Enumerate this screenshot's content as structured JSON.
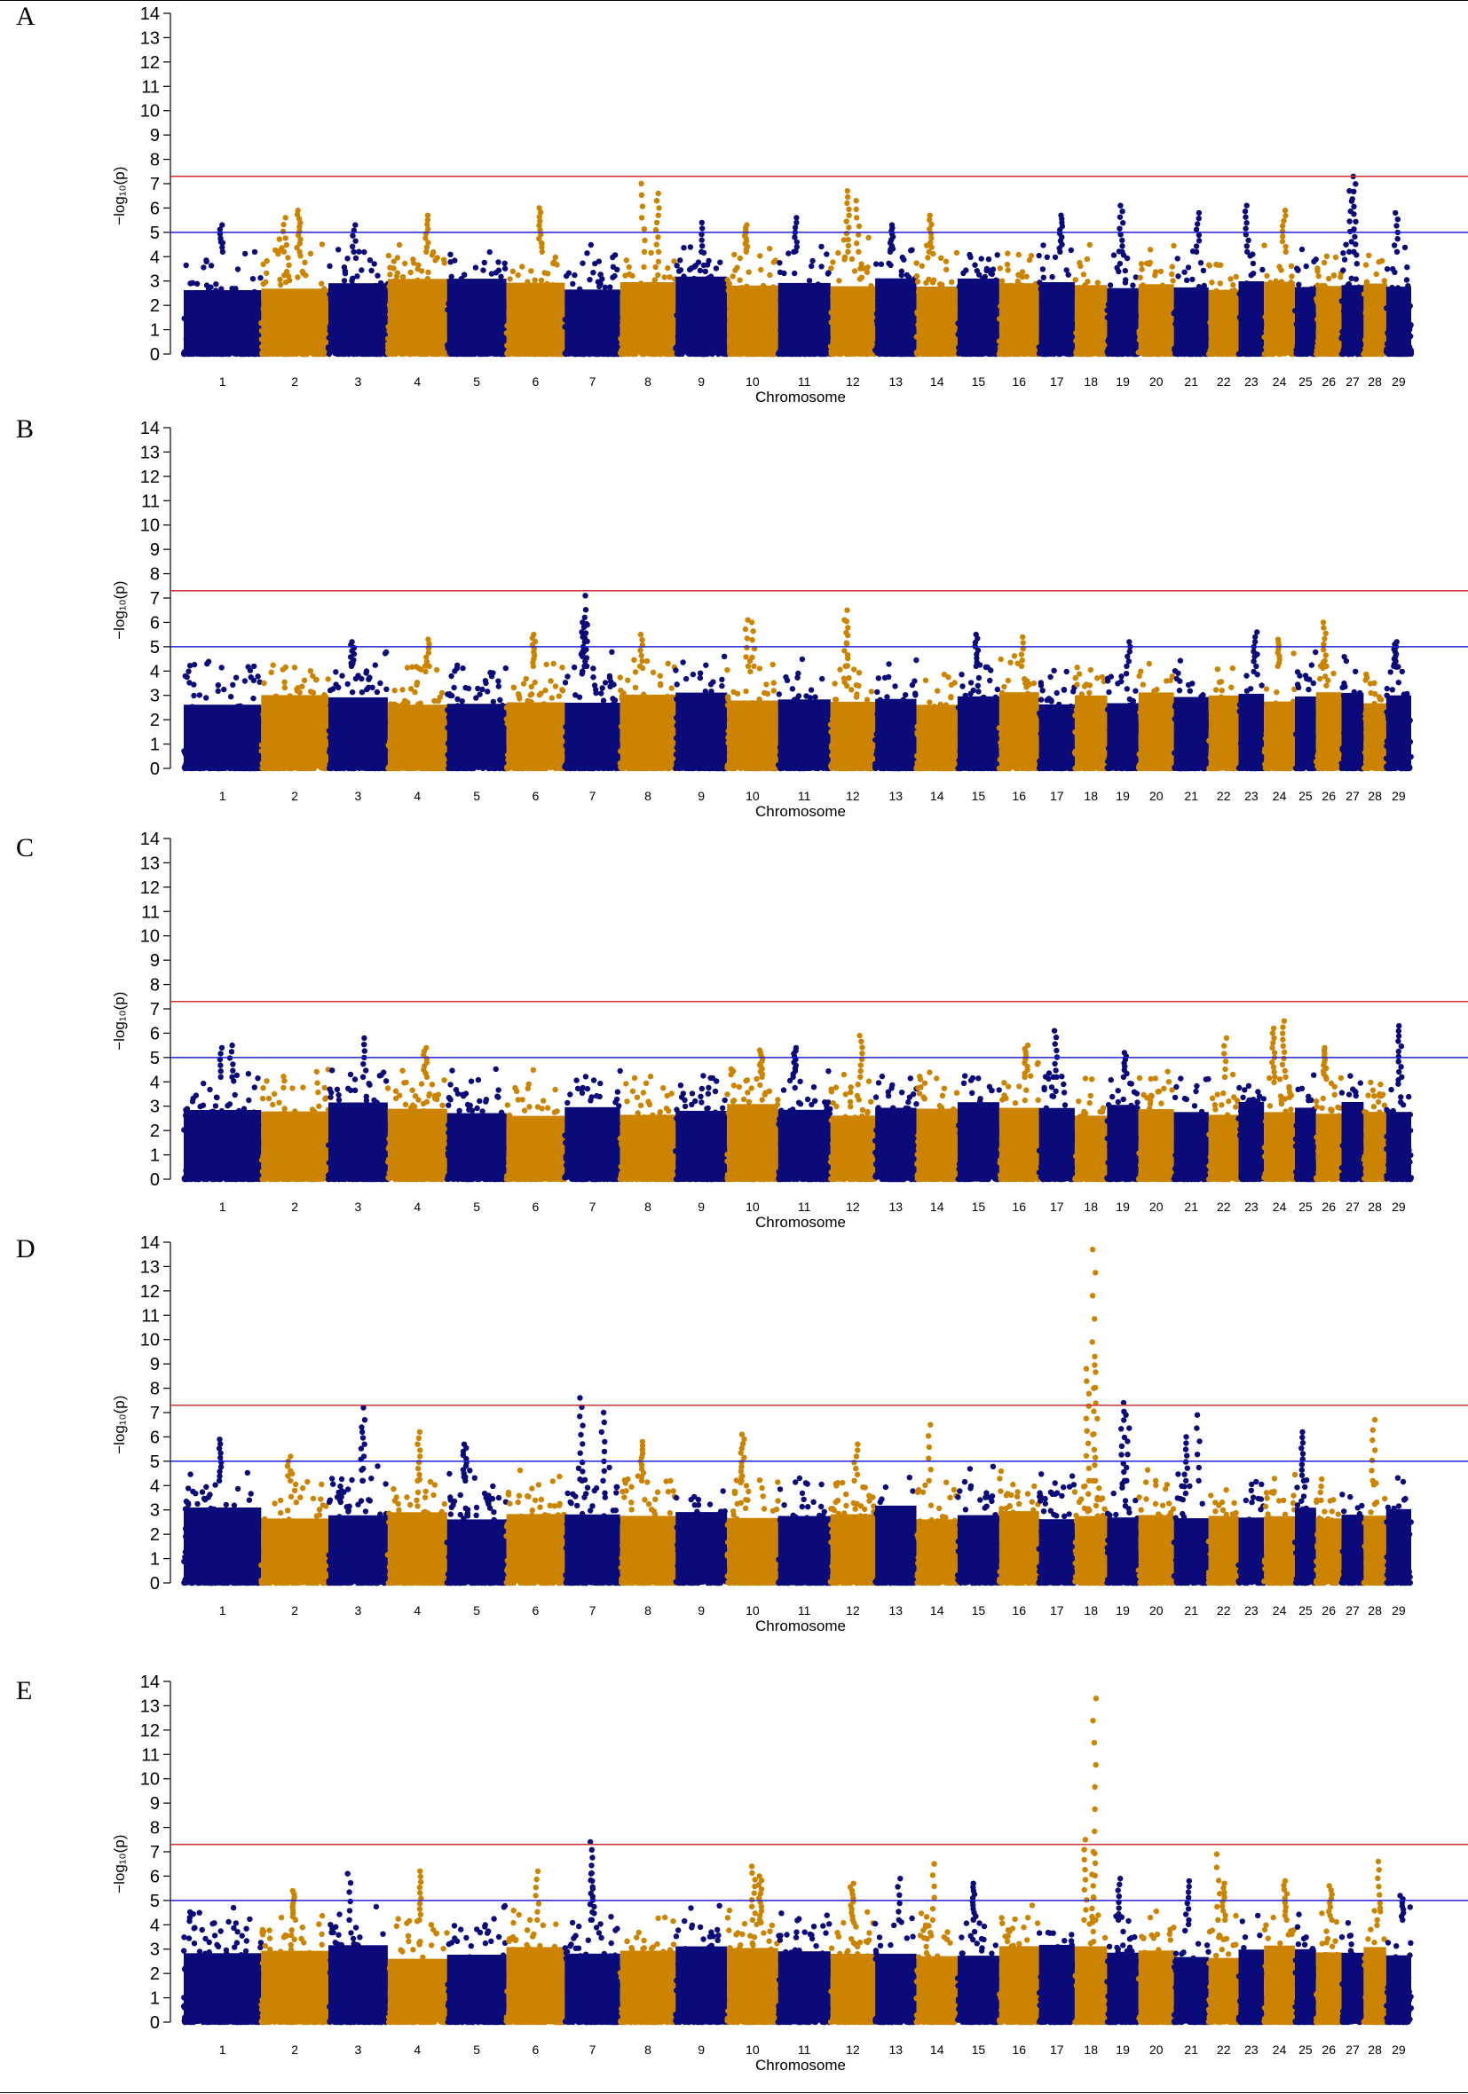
{
  "figure": {
    "description_free": true
  },
  "colors": {
    "dark": "#0a0a7a",
    "orange": "#cc8400",
    "red_line": "#d03030",
    "blue_line": "#2020d8",
    "axis": "#000000"
  },
  "chart_data": [
    {
      "panel_label": "A",
      "type": "scatter",
      "xlabel": "Chromosome",
      "ylabel": "−log₁₀(p)",
      "ylim": [
        0,
        14
      ],
      "yticks": [
        0,
        1,
        2,
        3,
        4,
        5,
        6,
        7,
        8,
        9,
        10,
        11,
        12,
        13,
        14
      ],
      "chromosomes": [
        "1",
        "2",
        "3",
        "4",
        "5",
        "6",
        "7",
        "8",
        "9",
        "10",
        "11",
        "12",
        "13",
        "14",
        "15",
        "16",
        "17",
        "18",
        "19",
        "20",
        "21",
        "22",
        "23",
        "24",
        "25",
        "26",
        "27",
        "28",
        "29"
      ],
      "thresholds": {
        "genome_wide": 7.3,
        "suggestive": 5.0
      },
      "peaks": [
        [
          1,
          5.3
        ],
        [
          2,
          5.6
        ],
        [
          2,
          5.9
        ],
        [
          3,
          5.3
        ],
        [
          4,
          5.7
        ],
        [
          6,
          6.0
        ],
        [
          8,
          7.0
        ],
        [
          8,
          6.6
        ],
        [
          9,
          5.4
        ],
        [
          10,
          5.3
        ],
        [
          11,
          5.6
        ],
        [
          12,
          6.7
        ],
        [
          12,
          6.3
        ],
        [
          13,
          5.3
        ],
        [
          14,
          5.7
        ],
        [
          17,
          5.7
        ],
        [
          19,
          6.1
        ],
        [
          21,
          5.8
        ],
        [
          23,
          6.1
        ],
        [
          24,
          5.9
        ],
        [
          27,
          7.3
        ],
        [
          27,
          6.7
        ],
        [
          29,
          5.8
        ]
      ]
    },
    {
      "panel_label": "B",
      "type": "scatter",
      "xlabel": "Chromosome",
      "ylabel": "−log₁₀(p)",
      "ylim": [
        0,
        14
      ],
      "yticks": [
        0,
        1,
        2,
        3,
        4,
        5,
        6,
        7,
        8,
        9,
        10,
        11,
        12,
        13,
        14
      ],
      "chromosomes": [
        "1",
        "2",
        "3",
        "4",
        "5",
        "6",
        "7",
        "8",
        "9",
        "10",
        "11",
        "12",
        "13",
        "14",
        "15",
        "16",
        "17",
        "18",
        "19",
        "20",
        "21",
        "22",
        "23",
        "24",
        "25",
        "26",
        "27",
        "28",
        "29"
      ],
      "thresholds": {
        "genome_wide": 7.3,
        "suggestive": 5.0
      },
      "peaks": [
        [
          3,
          5.2
        ],
        [
          4,
          5.3
        ],
        [
          6,
          5.5
        ],
        [
          7,
          7.1
        ],
        [
          7,
          6.2
        ],
        [
          7,
          5.9
        ],
        [
          8,
          5.5
        ],
        [
          10,
          6.0
        ],
        [
          10,
          6.1
        ],
        [
          12,
          6.5
        ],
        [
          12,
          6.1
        ],
        [
          15,
          5.5
        ],
        [
          16,
          5.4
        ],
        [
          19,
          5.2
        ],
        [
          23,
          5.6
        ],
        [
          24,
          5.3
        ],
        [
          26,
          6.0
        ],
        [
          29,
          5.2
        ]
      ]
    },
    {
      "panel_label": "C",
      "type": "scatter",
      "xlabel": "Chromosome",
      "ylabel": "−log₁₀(p)",
      "ylim": [
        0,
        14
      ],
      "yticks": [
        0,
        1,
        2,
        3,
        4,
        5,
        6,
        7,
        8,
        9,
        10,
        11,
        12,
        13,
        14
      ],
      "chromosomes": [
        "1",
        "2",
        "3",
        "4",
        "5",
        "6",
        "7",
        "8",
        "9",
        "10",
        "11",
        "12",
        "13",
        "14",
        "15",
        "16",
        "17",
        "18",
        "19",
        "20",
        "21",
        "22",
        "23",
        "24",
        "25",
        "26",
        "27",
        "28",
        "29"
      ],
      "thresholds": {
        "genome_wide": 7.3,
        "suggestive": 5.0
      },
      "peaks": [
        [
          1,
          5.5
        ],
        [
          1,
          5.4
        ],
        [
          3,
          5.8
        ],
        [
          4,
          5.4
        ],
        [
          10,
          5.3
        ],
        [
          11,
          5.4
        ],
        [
          12,
          5.9
        ],
        [
          16,
          5.5
        ],
        [
          17,
          6.1
        ],
        [
          19,
          5.2
        ],
        [
          22,
          5.8
        ],
        [
          24,
          6.5
        ],
        [
          24,
          6.2
        ],
        [
          26,
          5.4
        ],
        [
          29,
          6.3
        ]
      ]
    },
    {
      "panel_label": "D",
      "type": "scatter",
      "xlabel": "Chromosome",
      "ylabel": "−log₁₀(p)",
      "ylim": [
        0,
        14
      ],
      "yticks": [
        0,
        1,
        2,
        3,
        4,
        5,
        6,
        7,
        8,
        9,
        10,
        11,
        12,
        13,
        14
      ],
      "chromosomes": [
        "1",
        "2",
        "3",
        "4",
        "5",
        "6",
        "7",
        "8",
        "9",
        "10",
        "11",
        "12",
        "13",
        "14",
        "15",
        "16",
        "17",
        "18",
        "19",
        "20",
        "21",
        "22",
        "23",
        "24",
        "25",
        "26",
        "27",
        "28",
        "29"
      ],
      "thresholds": {
        "genome_wide": 7.3,
        "suggestive": 5.0
      },
      "peaks": [
        [
          1,
          5.9
        ],
        [
          2,
          5.2
        ],
        [
          3,
          7.2
        ],
        [
          3,
          6.4
        ],
        [
          4,
          6.2
        ],
        [
          5,
          5.7
        ],
        [
          7,
          7.6
        ],
        [
          7,
          7.0
        ],
        [
          8,
          5.8
        ],
        [
          10,
          6.1
        ],
        [
          12,
          5.7
        ],
        [
          14,
          6.5
        ],
        [
          18,
          13.7
        ],
        [
          18,
          9.3
        ],
        [
          18,
          8.8
        ],
        [
          19,
          7.4
        ],
        [
          19,
          6.9
        ],
        [
          21,
          6.9
        ],
        [
          21,
          6.0
        ],
        [
          25,
          6.2
        ],
        [
          28,
          6.7
        ]
      ]
    },
    {
      "panel_label": "E",
      "type": "scatter",
      "xlabel": "Chromosome",
      "ylabel": "−log₁₀(p)",
      "ylim": [
        0,
        14
      ],
      "yticks": [
        0,
        1,
        2,
        3,
        4,
        5,
        6,
        7,
        8,
        9,
        10,
        11,
        12,
        13,
        14
      ],
      "chromosomes": [
        "1",
        "2",
        "3",
        "4",
        "5",
        "6",
        "7",
        "8",
        "9",
        "10",
        "11",
        "12",
        "13",
        "14",
        "15",
        "16",
        "17",
        "18",
        "19",
        "20",
        "21",
        "22",
        "23",
        "24",
        "25",
        "26",
        "27",
        "28",
        "29"
      ],
      "thresholds": {
        "genome_wide": 7.3,
        "suggestive": 5.0
      },
      "peaks": [
        [
          2,
          5.4
        ],
        [
          3,
          6.1
        ],
        [
          4,
          6.2
        ],
        [
          6,
          6.2
        ],
        [
          7,
          7.4
        ],
        [
          7,
          6.1
        ],
        [
          10,
          6.4
        ],
        [
          10,
          6.0
        ],
        [
          12,
          5.7
        ],
        [
          13,
          5.9
        ],
        [
          14,
          6.5
        ],
        [
          15,
          5.7
        ],
        [
          18,
          13.3
        ],
        [
          18,
          7.5
        ],
        [
          18,
          7.0
        ],
        [
          19,
          5.9
        ],
        [
          21,
          5.8
        ],
        [
          22,
          6.9
        ],
        [
          22,
          5.7
        ],
        [
          24,
          5.8
        ],
        [
          26,
          5.6
        ],
        [
          28,
          6.6
        ],
        [
          29,
          5.2
        ]
      ]
    }
  ]
}
